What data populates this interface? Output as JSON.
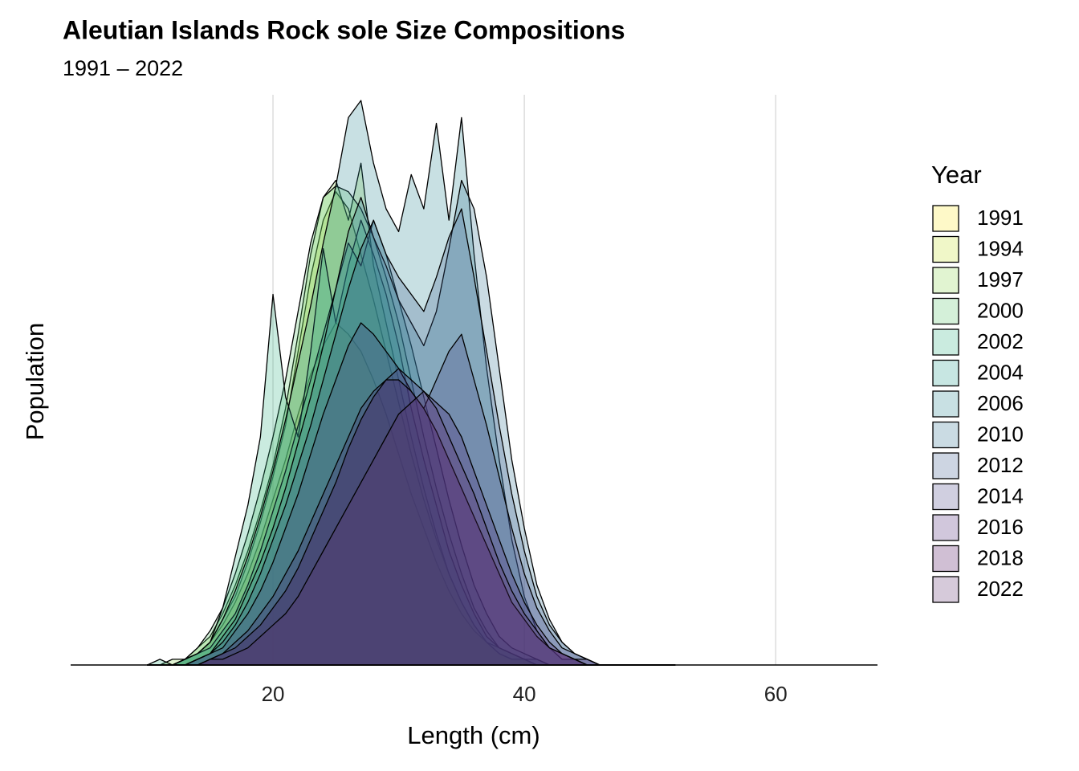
{
  "chart_data": {
    "type": "area",
    "title": "Aleutian Islands Rock sole Size Compositions",
    "subtitle": "1991 – 2022",
    "x_label": "Length (cm)",
    "y_label": "Population",
    "legend_title": "Year",
    "legend_position": "right",
    "grid": true,
    "alpha": 0.25,
    "xlim": [
      3.9,
      68.1
    ],
    "xticks": [
      20,
      40,
      60
    ],
    "ylim": [
      0,
      100
    ],
    "x": [
      10,
      11,
      12,
      13,
      14,
      15,
      16,
      17,
      18,
      19,
      20,
      21,
      22,
      23,
      24,
      25,
      26,
      27,
      28,
      29,
      30,
      31,
      32,
      33,
      34,
      35,
      36,
      37,
      38,
      39,
      40,
      41,
      42,
      43,
      44,
      45,
      46,
      47,
      48,
      49,
      50,
      51,
      52
    ],
    "series": [
      {
        "name": "1991",
        "color": "#fde725",
        "values": [
          0,
          0,
          0,
          1,
          2,
          4,
          7,
          11,
          16,
          22,
          29,
          36,
          44,
          51,
          56,
          60,
          58,
          55,
          50,
          44,
          37,
          30,
          24,
          18,
          13,
          9,
          6,
          4,
          2,
          1,
          1,
          0,
          0,
          0,
          0,
          0,
          0,
          0,
          0,
          0,
          0,
          0,
          0
        ]
      },
      {
        "name": "1994",
        "color": "#c2df23",
        "values": [
          0,
          0,
          0,
          1,
          2,
          4,
          8,
          12,
          18,
          25,
          33,
          42,
          55,
          68,
          78,
          83,
          80,
          72,
          64,
          55,
          46,
          37,
          29,
          22,
          16,
          11,
          7,
          4,
          3,
          2,
          1,
          0,
          0,
          0,
          0,
          0,
          0,
          0,
          0,
          0,
          0,
          0,
          0
        ]
      },
      {
        "name": "1997",
        "color": "#86d549",
        "values": [
          0,
          0,
          1,
          1,
          3,
          5,
          9,
          14,
          20,
          27,
          35,
          45,
          58,
          72,
          82,
          85,
          78,
          88,
          70,
          60,
          50,
          40,
          31,
          23,
          16,
          11,
          7,
          4,
          2,
          1,
          1,
          0,
          0,
          0,
          0,
          0,
          0,
          0,
          0,
          0,
          0,
          0,
          0
        ]
      },
      {
        "name": "2000",
        "color": "#52c569",
        "values": [
          0,
          0,
          0,
          1,
          3,
          6,
          10,
          16,
          23,
          31,
          40,
          50,
          62,
          74,
          82,
          84,
          83,
          80,
          75,
          68,
          60,
          50,
          40,
          31,
          23,
          16,
          10,
          6,
          3,
          2,
          1,
          0,
          0,
          0,
          0,
          0,
          0,
          0,
          0,
          0,
          0,
          0,
          0
        ]
      },
      {
        "name": "2002",
        "color": "#2ab07f",
        "values": [
          0,
          1,
          0,
          1,
          2,
          4,
          10,
          19,
          28,
          40,
          65,
          47,
          40,
          55,
          73,
          60,
          70,
          78,
          72,
          65,
          56,
          45,
          36,
          28,
          20,
          14,
          9,
          5,
          3,
          2,
          1,
          1,
          0,
          0,
          0,
          0,
          0,
          0,
          0,
          0,
          0,
          0,
          0
        ]
      },
      {
        "name": "2004",
        "color": "#1e9b8a",
        "values": [
          0,
          0,
          0,
          1,
          2,
          3,
          6,
          9,
          14,
          20,
          27,
          34,
          42,
          50,
          58,
          66,
          74,
          70,
          78,
          72,
          64,
          56,
          47,
          38,
          29,
          21,
          14,
          9,
          5,
          3,
          2,
          1,
          0,
          0,
          0,
          0,
          0,
          0,
          0,
          0,
          0,
          0,
          0
        ]
      },
      {
        "name": "2006",
        "color": "#25858e",
        "values": [
          0,
          0,
          0,
          1,
          2,
          4,
          8,
          13,
          19,
          26,
          34,
          43,
          53,
          63,
          74,
          84,
          96,
          99,
          88,
          80,
          76,
          86,
          80,
          95,
          78,
          96,
          72,
          52,
          36,
          22,
          12,
          6,
          3,
          1,
          1,
          0,
          0,
          0,
          0,
          0,
          0,
          0,
          0
        ]
      },
      {
        "name": "2010",
        "color": "#2d708e",
        "values": [
          0,
          0,
          0,
          0,
          1,
          2,
          5,
          8,
          13,
          18,
          24,
          31,
          39,
          47,
          56,
          66,
          76,
          82,
          75,
          70,
          64,
          60,
          56,
          62,
          73,
          85,
          80,
          68,
          52,
          36,
          24,
          14,
          8,
          4,
          2,
          1,
          0,
          0,
          0,
          0,
          0,
          0,
          0
        ]
      },
      {
        "name": "2012",
        "color": "#38588c",
        "values": [
          0,
          0,
          0,
          0,
          1,
          2,
          4,
          7,
          11,
          16,
          22,
          28,
          35,
          42,
          50,
          58,
          66,
          73,
          78,
          72,
          68,
          65,
          62,
          68,
          75,
          80,
          68,
          55,
          42,
          30,
          20,
          12,
          7,
          4,
          2,
          1,
          0,
          0,
          0,
          0,
          0,
          0,
          0
        ]
      },
      {
        "name": "2014",
        "color": "#433e85",
        "values": [
          0,
          0,
          0,
          0,
          1,
          2,
          3,
          6,
          9,
          13,
          18,
          24,
          30,
          37,
          44,
          50,
          56,
          60,
          58,
          55,
          52,
          48,
          45,
          50,
          55,
          58,
          50,
          42,
          33,
          24,
          16,
          10,
          6,
          3,
          2,
          1,
          0,
          0,
          0,
          0,
          0,
          0,
          0
        ]
      },
      {
        "name": "2016",
        "color": "#482173",
        "values": [
          0,
          0,
          0,
          0,
          0,
          1,
          2,
          4,
          6,
          9,
          12,
          16,
          20,
          25,
          30,
          35,
          40,
          45,
          48,
          50,
          52,
          50,
          48,
          46,
          44,
          40,
          34,
          28,
          22,
          16,
          11,
          7,
          4,
          2,
          1,
          1,
          0,
          0,
          0,
          0,
          0,
          0,
          0
        ]
      },
      {
        "name": "2018",
        "color": "#440154",
        "values": [
          0,
          0,
          0,
          0,
          0,
          1,
          2,
          3,
          5,
          7,
          10,
          13,
          17,
          22,
          27,
          32,
          38,
          43,
          47,
          50,
          50,
          48,
          45,
          41,
          36,
          31,
          26,
          21,
          16,
          11,
          8,
          5,
          3,
          2,
          1,
          0,
          0,
          0,
          0,
          0,
          0,
          0,
          0
        ]
      },
      {
        "name": "2022",
        "color": "#5b2a6b",
        "values": [
          0,
          0,
          0,
          0,
          0,
          1,
          1,
          2,
          3,
          5,
          7,
          9,
          12,
          16,
          20,
          24,
          28,
          32,
          36,
          40,
          44,
          46,
          48,
          45,
          40,
          35,
          30,
          24,
          18,
          13,
          9,
          6,
          3,
          2,
          1,
          0,
          0,
          0,
          0,
          0,
          0,
          0,
          0
        ]
      }
    ]
  }
}
